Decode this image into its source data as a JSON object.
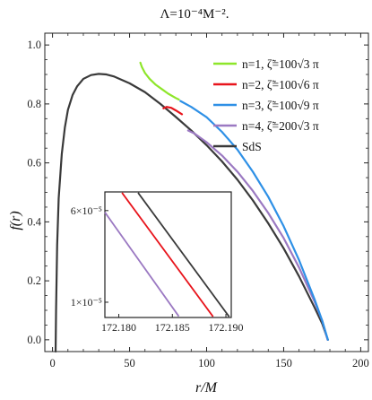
{
  "chart_data": {
    "type": "line",
    "title": "Λ=10⁻⁴M⁻².",
    "xlabel": "r/M",
    "ylabel": "f(r)",
    "xlim": [
      -5,
      205
    ],
    "ylim": [
      -0.04,
      1.04
    ],
    "xticks": [
      0,
      50,
      100,
      150,
      200
    ],
    "xtick_labels": [
      "0",
      "50",
      "100",
      "150",
      "200"
    ],
    "yticks": [
      0.0,
      0.2,
      0.4,
      0.6,
      0.8,
      1.0
    ],
    "ytick_labels": [
      "0.0",
      "0.2",
      "0.4",
      "0.6",
      "0.8",
      "1.0"
    ],
    "grid": false,
    "legend_position": "top-right",
    "series": [
      {
        "name": "n=1, ζ̃=100√3 π",
        "color": "#8ee62a",
        "points": [
          [
            57,
            0.94
          ],
          [
            58,
            0.925
          ],
          [
            60,
            0.905
          ],
          [
            63,
            0.885
          ],
          [
            67,
            0.865
          ],
          [
            71,
            0.85
          ],
          [
            75,
            0.835
          ],
          [
            80,
            0.82
          ],
          [
            82,
            0.815
          ]
        ]
      },
      {
        "name": "n=2, ζ̃=100√6 π",
        "color": "#e8141c",
        "points": [
          [
            72,
            0.785
          ],
          [
            74,
            0.79
          ],
          [
            77,
            0.787
          ],
          [
            80,
            0.778
          ],
          [
            84,
            0.765
          ]
        ]
      },
      {
        "name": "n=3, ζ̃=100√9 π",
        "color": "#2e90e6",
        "points": [
          [
            83,
            0.81
          ],
          [
            90,
            0.79
          ],
          [
            100,
            0.755
          ],
          [
            110,
            0.705
          ],
          [
            120,
            0.645
          ],
          [
            130,
            0.57
          ],
          [
            140,
            0.485
          ],
          [
            150,
            0.385
          ],
          [
            160,
            0.27
          ],
          [
            170,
            0.138
          ],
          [
            175,
            0.065
          ],
          [
            178.7,
            0.0
          ]
        ]
      },
      {
        "name": "n=4, ζ̃=200√3 π",
        "color": "#9b79c2",
        "points": [
          [
            88,
            0.71
          ],
          [
            92,
            0.7
          ],
          [
            100,
            0.67
          ],
          [
            110,
            0.625
          ],
          [
            120,
            0.57
          ],
          [
            130,
            0.505
          ],
          [
            140,
            0.43
          ],
          [
            150,
            0.345
          ],
          [
            160,
            0.245
          ],
          [
            170,
            0.13
          ],
          [
            175,
            0.065
          ],
          [
            178.5,
            0.0
          ]
        ]
      },
      {
        "name": "SdS",
        "color": "#3a3a3a",
        "points": [
          [
            2.0,
            -0.04
          ],
          [
            2.3,
            0.1
          ],
          [
            3,
            0.32
          ],
          [
            4,
            0.48
          ],
          [
            6,
            0.63
          ],
          [
            8,
            0.72
          ],
          [
            10,
            0.78
          ],
          [
            13,
            0.83
          ],
          [
            16,
            0.86
          ],
          [
            20,
            0.885
          ],
          [
            25,
            0.898
          ],
          [
            30,
            0.902
          ],
          [
            35,
            0.9
          ],
          [
            40,
            0.893
          ],
          [
            50,
            0.87
          ],
          [
            60,
            0.84
          ],
          [
            70,
            0.8
          ],
          [
            80,
            0.756
          ],
          [
            90,
            0.71
          ],
          [
            100,
            0.66
          ],
          [
            110,
            0.605
          ],
          [
            120,
            0.543
          ],
          [
            130,
            0.473
          ],
          [
            140,
            0.395
          ],
          [
            150,
            0.31
          ],
          [
            160,
            0.215
          ],
          [
            170,
            0.11
          ],
          [
            175,
            0.055
          ],
          [
            178.7,
            0.0
          ]
        ]
      }
    ],
    "inset": {
      "xlim": [
        172.1787,
        172.1905
      ],
      "xticks": [
        172.18,
        172.185,
        172.19
      ],
      "xtick_labels": [
        "172.180",
        "172.185",
        "172.190"
      ],
      "yticks": [
        1e-05,
        6.4e-05
      ],
      "ytick_labels": [
        "1×10⁻⁵",
        "6×10⁻⁵"
      ],
      "ylim": [
        1e-06,
        7.5e-05
      ],
      "series": [
        {
          "color": "#9b79c2",
          "points": [
            [
              172.1787,
              6.3e-05
            ],
            [
              172.1856,
              1.7e-06
            ]
          ]
        },
        {
          "color": "#e8141c",
          "points": [
            [
              172.1803,
              7.45e-05
            ],
            [
              172.1888,
              1.5e-06
            ]
          ]
        },
        {
          "color": "#3a3a3a",
          "points": [
            [
              172.1818,
              7.45e-05
            ],
            [
              172.1903,
              1.5e-06
            ]
          ]
        }
      ]
    }
  }
}
